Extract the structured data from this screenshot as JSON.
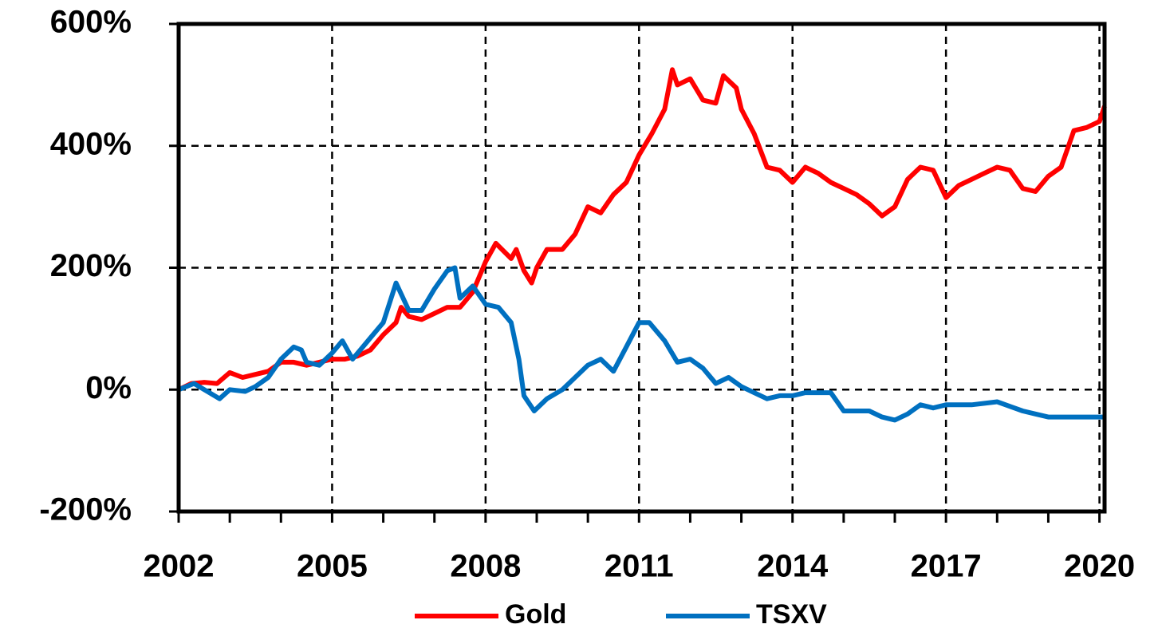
{
  "chart_data": {
    "type": "line",
    "xlim": [
      2002,
      2020.1
    ],
    "xticks": [
      2002,
      2005,
      2008,
      2011,
      2014,
      2017,
      2020
    ],
    "xminorticks": [
      2003,
      2004,
      2006,
      2007,
      2009,
      2010,
      2012,
      2013,
      2015,
      2016,
      2018,
      2019
    ],
    "ylim": [
      -200,
      600
    ],
    "yticks": [
      {
        "value": 600,
        "label": "600%"
      },
      {
        "value": 400,
        "label": "400%"
      },
      {
        "value": 200,
        "label": "200%"
      },
      {
        "value": 0,
        "label": "0%"
      },
      {
        "value": -200,
        "label": "-200%"
      }
    ],
    "grid": true,
    "legend": "bottom",
    "series": [
      {
        "name": "Gold",
        "color": "#ff0000",
        "x": [
          2002,
          2002.25,
          2002.5,
          2002.75,
          2003,
          2003.25,
          2003.5,
          2003.75,
          2004,
          2004.25,
          2004.5,
          2004.75,
          2005,
          2005.25,
          2005.5,
          2005.75,
          2006,
          2006.25,
          2006.35,
          2006.5,
          2006.75,
          2007,
          2007.25,
          2007.5,
          2007.75,
          2008,
          2008.2,
          2008.5,
          2008.6,
          2008.75,
          2008.9,
          2009,
          2009.2,
          2009.5,
          2009.75,
          2010,
          2010.25,
          2010.5,
          2010.75,
          2011,
          2011.25,
          2011.5,
          2011.65,
          2011.75,
          2012,
          2012.25,
          2012.5,
          2012.65,
          2012.9,
          2013,
          2013.25,
          2013.5,
          2013.75,
          2014,
          2014.25,
          2014.5,
          2014.75,
          2015,
          2015.25,
          2015.5,
          2015.75,
          2016,
          2016.25,
          2016.5,
          2016.75,
          2017,
          2017.25,
          2017.5,
          2017.75,
          2018,
          2018.25,
          2018.5,
          2018.75,
          2019,
          2019.25,
          2019.5,
          2019.75,
          2020,
          2020.1
        ],
        "values": [
          0,
          10,
          12,
          10,
          28,
          20,
          25,
          30,
          45,
          45,
          40,
          45,
          50,
          50,
          55,
          65,
          90,
          110,
          135,
          120,
          115,
          125,
          135,
          135,
          160,
          210,
          240,
          215,
          230,
          195,
          175,
          200,
          230,
          230,
          255,
          300,
          290,
          320,
          340,
          385,
          420,
          460,
          525,
          500,
          510,
          475,
          470,
          515,
          495,
          460,
          420,
          365,
          360,
          340,
          365,
          355,
          340,
          330,
          320,
          305,
          285,
          300,
          345,
          365,
          360,
          315,
          335,
          345,
          355,
          365,
          360,
          330,
          325,
          350,
          365,
          425,
          430,
          440,
          465
        ]
      },
      {
        "name": "TSXV",
        "color": "#0070c0",
        "x": [
          2002,
          2002.3,
          2002.6,
          2002.8,
          2003,
          2003.3,
          2003.5,
          2003.75,
          2004,
          2004.25,
          2004.4,
          2004.5,
          2004.75,
          2005,
          2005.2,
          2005.4,
          2005.6,
          2005.75,
          2006,
          2006.25,
          2006.5,
          2006.75,
          2007,
          2007.25,
          2007.4,
          2007.5,
          2007.75,
          2008,
          2008.25,
          2008.5,
          2008.65,
          2008.75,
          2008.95,
          2009.2,
          2009.5,
          2009.75,
          2010,
          2010.25,
          2010.5,
          2010.75,
          2011,
          2011.2,
          2011.5,
          2011.75,
          2012,
          2012.25,
          2012.5,
          2012.75,
          2013,
          2013.25,
          2013.5,
          2013.75,
          2014,
          2014.25,
          2014.5,
          2014.75,
          2015,
          2015.5,
          2015.75,
          2016,
          2016.25,
          2016.5,
          2016.75,
          2017,
          2017.5,
          2018,
          2018.5,
          2018.75,
          2019,
          2019.5,
          2020,
          2020.1
        ],
        "values": [
          0,
          10,
          -5,
          -15,
          0,
          -3,
          5,
          20,
          50,
          70,
          65,
          45,
          40,
          60,
          80,
          50,
          70,
          85,
          110,
          175,
          130,
          130,
          165,
          195,
          200,
          150,
          170,
          140,
          135,
          110,
          50,
          -10,
          -35,
          -15,
          0,
          20,
          40,
          50,
          30,
          70,
          110,
          110,
          80,
          45,
          50,
          35,
          10,
          20,
          5,
          -5,
          -15,
          -10,
          -10,
          -5,
          -5,
          -5,
          -35,
          -35,
          -45,
          -50,
          -40,
          -25,
          -30,
          -25,
          -25,
          -20,
          -35,
          -40,
          -45,
          -45,
          -45,
          -45
        ]
      }
    ]
  }
}
